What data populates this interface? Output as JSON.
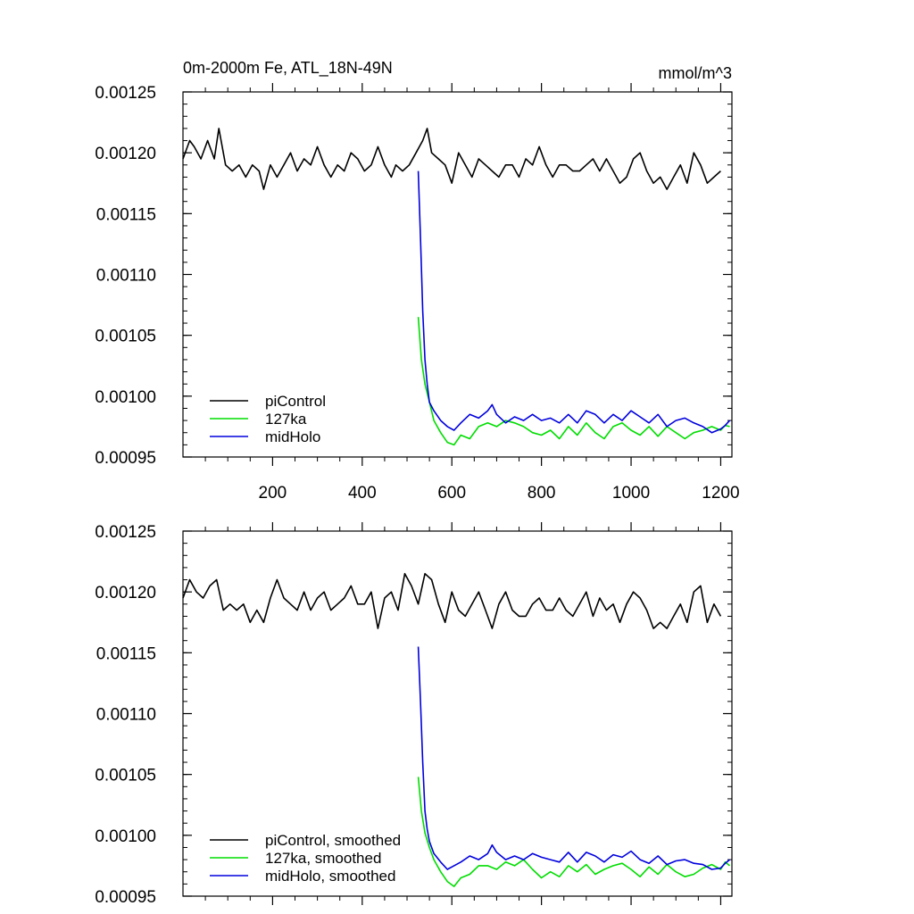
{
  "chart_data": [
    {
      "type": "line",
      "title": "0m-2000m Fe, ATL_18N-49N",
      "units": "mmol/m^3",
      "xlim": [
        0,
        1225
      ],
      "ylim": [
        0.00095,
        0.00125
      ],
      "x_tick_labels": [
        "200",
        "400",
        "600",
        "800",
        "1000",
        "1200"
      ],
      "x_ticks": [
        200,
        400,
        600,
        800,
        1000,
        1200
      ],
      "y_tick_labels": [
        "0.00095",
        "0.00100",
        "0.00105",
        "0.00110",
        "0.00115",
        "0.00120",
        "0.00125"
      ],
      "y_ticks": [
        0.00095,
        0.001,
        0.00105,
        0.0011,
        0.00115,
        0.0012,
        0.00125
      ],
      "legend_position": "bottom-left",
      "series": [
        {
          "name": "piControl",
          "color": "#000000",
          "x": [
            0,
            15,
            25,
            40,
            55,
            70,
            80,
            95,
            110,
            125,
            140,
            155,
            170,
            180,
            195,
            210,
            225,
            240,
            255,
            270,
            285,
            300,
            315,
            330,
            345,
            360,
            375,
            390,
            405,
            420,
            435,
            450,
            465,
            475,
            490,
            505,
            520,
            535,
            545,
            555,
            570,
            585,
            600,
            615,
            630,
            645,
            660,
            675,
            690,
            705,
            720,
            735,
            750,
            765,
            780,
            795,
            810,
            825,
            840,
            855,
            870,
            885,
            900,
            915,
            930,
            945,
            960,
            975,
            990,
            1005,
            1020,
            1035,
            1050,
            1065,
            1080,
            1095,
            1110,
            1125,
            1140,
            1155,
            1170,
            1185,
            1200
          ],
          "values": [
            0.001195,
            0.00121,
            0.001205,
            0.001195,
            0.00121,
            0.001195,
            0.00122,
            0.00119,
            0.001185,
            0.00119,
            0.00118,
            0.00119,
            0.001185,
            0.00117,
            0.00119,
            0.00118,
            0.00119,
            0.0012,
            0.001185,
            0.001195,
            0.00119,
            0.001205,
            0.00119,
            0.00118,
            0.00119,
            0.001185,
            0.0012,
            0.001195,
            0.001185,
            0.00119,
            0.001205,
            0.00119,
            0.00118,
            0.00119,
            0.001185,
            0.00119,
            0.0012,
            0.00121,
            0.00122,
            0.0012,
            0.001195,
            0.00119,
            0.001175,
            0.0012,
            0.00119,
            0.00118,
            0.001195,
            0.00119,
            0.001185,
            0.00118,
            0.00119,
            0.00119,
            0.00118,
            0.001195,
            0.00119,
            0.001205,
            0.00119,
            0.00118,
            0.00119,
            0.00119,
            0.001185,
            0.001185,
            0.00119,
            0.001195,
            0.001185,
            0.001195,
            0.001185,
            0.001175,
            0.00118,
            0.001195,
            0.0012,
            0.001185,
            0.001175,
            0.00118,
            0.00117,
            0.00118,
            0.00119,
            0.001175,
            0.0012,
            0.00119,
            0.001175,
            0.00118,
            0.001185
          ]
        },
        {
          "name": "127ka",
          "color": "#00dd00",
          "x": [
            525,
            532,
            540,
            550,
            560,
            575,
            590,
            605,
            620,
            640,
            660,
            680,
            700,
            720,
            740,
            760,
            780,
            800,
            820,
            840,
            860,
            880,
            900,
            920,
            940,
            960,
            980,
            1000,
            1020,
            1040,
            1060,
            1080,
            1100,
            1120,
            1140,
            1160,
            1180,
            1200,
            1210,
            1220
          ],
          "values": [
            0.001065,
            0.00103,
            0.00101,
            0.000995,
            0.00098,
            0.00097,
            0.000962,
            0.00096,
            0.000968,
            0.000965,
            0.000975,
            0.000978,
            0.000975,
            0.00098,
            0.000978,
            0.000975,
            0.00097,
            0.000968,
            0.000972,
            0.000965,
            0.000975,
            0.000968,
            0.000978,
            0.00097,
            0.000965,
            0.000975,
            0.000978,
            0.000972,
            0.000968,
            0.000975,
            0.000967,
            0.000975,
            0.00097,
            0.000965,
            0.00097,
            0.000972,
            0.000975,
            0.000972,
            0.000976,
            0.000975
          ]
        },
        {
          "name": "midHolo",
          "color": "#0000dd",
          "x": [
            525,
            530,
            535,
            540,
            545,
            550,
            560,
            575,
            590,
            605,
            620,
            640,
            660,
            680,
            690,
            700,
            720,
            740,
            760,
            780,
            800,
            820,
            840,
            860,
            880,
            900,
            920,
            940,
            960,
            980,
            1000,
            1020,
            1040,
            1060,
            1080,
            1100,
            1120,
            1140,
            1160,
            1180,
            1200,
            1210,
            1220
          ],
          "values": [
            0.001185,
            0.00113,
            0.00107,
            0.00103,
            0.00101,
            0.000995,
            0.000988,
            0.00098,
            0.000975,
            0.000972,
            0.000978,
            0.000985,
            0.000982,
            0.000988,
            0.000993,
            0.000985,
            0.000978,
            0.000983,
            0.00098,
            0.000985,
            0.00098,
            0.000982,
            0.000978,
            0.000985,
            0.000978,
            0.000988,
            0.000985,
            0.000978,
            0.000985,
            0.00098,
            0.000988,
            0.000983,
            0.000978,
            0.000985,
            0.000975,
            0.00098,
            0.000982,
            0.000978,
            0.000975,
            0.00097,
            0.000973,
            0.000976,
            0.00098
          ]
        }
      ]
    },
    {
      "type": "line",
      "xlim": [
        0,
        1225
      ],
      "ylim": [
        0.00095,
        0.00125
      ],
      "y_tick_labels": [
        "0.00095",
        "0.00100",
        "0.00105",
        "0.00110",
        "0.00115",
        "0.00120",
        "0.00125"
      ],
      "y_ticks": [
        0.00095,
        0.001,
        0.00105,
        0.0011,
        0.00115,
        0.0012,
        0.00125
      ],
      "x_ticks": [
        200,
        400,
        600,
        800,
        1000,
        1200
      ],
      "legend_position": "bottom-left",
      "series": [
        {
          "name": "piControl, smoothed",
          "color": "#000000",
          "x": [
            0,
            15,
            30,
            45,
            60,
            75,
            90,
            105,
            120,
            135,
            150,
            165,
            180,
            195,
            210,
            225,
            240,
            255,
            270,
            285,
            300,
            315,
            330,
            345,
            360,
            375,
            390,
            405,
            420,
            435,
            450,
            465,
            480,
            495,
            510,
            525,
            540,
            555,
            570,
            585,
            600,
            615,
            630,
            645,
            660,
            675,
            690,
            705,
            720,
            735,
            750,
            765,
            780,
            795,
            810,
            825,
            840,
            855,
            870,
            885,
            900,
            915,
            930,
            945,
            960,
            975,
            990,
            1005,
            1020,
            1035,
            1050,
            1065,
            1080,
            1095,
            1110,
            1125,
            1140,
            1155,
            1170,
            1185,
            1200
          ],
          "values": [
            0.001195,
            0.00121,
            0.0012,
            0.001195,
            0.001205,
            0.00121,
            0.001185,
            0.00119,
            0.001185,
            0.00119,
            0.001175,
            0.001185,
            0.001175,
            0.001195,
            0.00121,
            0.001195,
            0.00119,
            0.001185,
            0.0012,
            0.001185,
            0.001195,
            0.0012,
            0.001185,
            0.00119,
            0.001195,
            0.001205,
            0.00119,
            0.00119,
            0.0012,
            0.00117,
            0.001195,
            0.0012,
            0.001185,
            0.001215,
            0.001205,
            0.00119,
            0.001215,
            0.00121,
            0.00119,
            0.001175,
            0.0012,
            0.001185,
            0.00118,
            0.00119,
            0.0012,
            0.001185,
            0.00117,
            0.00119,
            0.0012,
            0.001185,
            0.00118,
            0.00118,
            0.00119,
            0.001195,
            0.001185,
            0.001185,
            0.001195,
            0.001185,
            0.00118,
            0.00119,
            0.0012,
            0.00118,
            0.001195,
            0.001185,
            0.00119,
            0.001175,
            0.00119,
            0.0012,
            0.001195,
            0.001185,
            0.00117,
            0.001175,
            0.00117,
            0.00118,
            0.00119,
            0.001175,
            0.0012,
            0.001205,
            0.001175,
            0.00119,
            0.00118
          ]
        },
        {
          "name": "127ka, smoothed",
          "color": "#00dd00",
          "x": [
            525,
            532,
            540,
            550,
            560,
            575,
            590,
            605,
            620,
            640,
            660,
            680,
            700,
            720,
            740,
            760,
            780,
            800,
            820,
            840,
            860,
            880,
            900,
            920,
            940,
            960,
            980,
            1000,
            1020,
            1040,
            1060,
            1080,
            1100,
            1120,
            1140,
            1160,
            1180,
            1200,
            1210,
            1220
          ],
          "values": [
            0.001048,
            0.00102,
            0.001002,
            0.00099,
            0.00098,
            0.00097,
            0.000962,
            0.000958,
            0.000965,
            0.000968,
            0.000975,
            0.000975,
            0.000972,
            0.000978,
            0.000975,
            0.00098,
            0.000972,
            0.000965,
            0.00097,
            0.000966,
            0.000975,
            0.00097,
            0.000976,
            0.000968,
            0.000972,
            0.000975,
            0.000977,
            0.000972,
            0.000966,
            0.000974,
            0.000968,
            0.000976,
            0.00097,
            0.000966,
            0.000968,
            0.000973,
            0.000976,
            0.000972,
            0.000978,
            0.000975
          ]
        },
        {
          "name": "midHolo, smoothed",
          "color": "#0000dd",
          "x": [
            525,
            530,
            535,
            540,
            545,
            550,
            560,
            575,
            590,
            605,
            620,
            640,
            660,
            680,
            690,
            700,
            720,
            740,
            760,
            780,
            800,
            820,
            840,
            860,
            880,
            900,
            920,
            940,
            960,
            980,
            1000,
            1020,
            1040,
            1060,
            1080,
            1100,
            1120,
            1140,
            1160,
            1180,
            1200,
            1210,
            1220
          ],
          "values": [
            0.001155,
            0.00111,
            0.00106,
            0.00102,
            0.001005,
            0.000995,
            0.000985,
            0.000978,
            0.000972,
            0.000975,
            0.000978,
            0.000983,
            0.00098,
            0.000985,
            0.000992,
            0.000986,
            0.00098,
            0.000983,
            0.00098,
            0.000985,
            0.000982,
            0.00098,
            0.000978,
            0.000986,
            0.000978,
            0.000986,
            0.000983,
            0.000978,
            0.000984,
            0.000982,
            0.000987,
            0.00098,
            0.000977,
            0.000983,
            0.000976,
            0.000979,
            0.00098,
            0.000977,
            0.000976,
            0.000972,
            0.000973,
            0.000977,
            0.00098
          ]
        }
      ]
    }
  ]
}
